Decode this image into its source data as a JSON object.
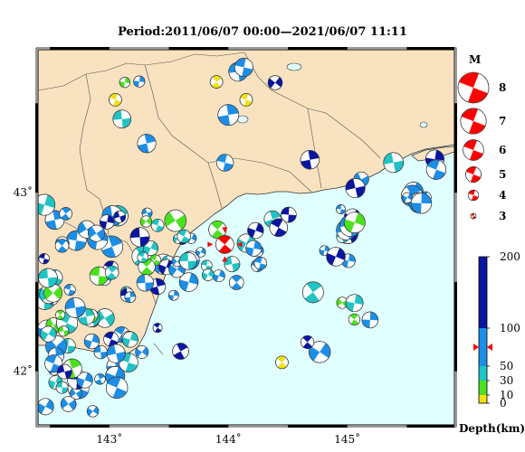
{
  "title": "Period:2011/06/07 00:00—2021/06/07 11:11",
  "map": {
    "lon_range": [
      142.4,
      145.9
    ],
    "lat_range": [
      41.7,
      43.8
    ],
    "lon_ticks": [
      {
        "value": 143,
        "label": "143˚"
      },
      {
        "value": 144,
        "label": "144˚"
      },
      {
        "value": 145,
        "label": "145˚"
      }
    ],
    "lat_ticks": [
      {
        "value": 42,
        "label": "42˚"
      },
      {
        "value": 43,
        "label": "43˚"
      }
    ],
    "land_color": "#f8e2c0",
    "sea_color": "#e0ffff",
    "highlight_event": {
      "lon": 143.97,
      "lat": 42.71,
      "color": "#ff0000"
    }
  },
  "magnitude_legend": {
    "title": "M",
    "items": [
      {
        "label": "8",
        "value": 8
      },
      {
        "label": "7",
        "value": 7
      },
      {
        "label": "6",
        "value": 6
      },
      {
        "label": "5",
        "value": 5
      },
      {
        "label": "4",
        "value": 4
      },
      {
        "label": "3",
        "value": 3
      }
    ]
  },
  "depth_scale": {
    "title": "Depth(km)",
    "range": [
      0,
      200
    ],
    "marker_value": 75,
    "ticks": [
      {
        "label": "200",
        "value": 200
      },
      {
        "label": "100",
        "value": 100
      },
      {
        "label": "50",
        "value": 50
      },
      {
        "label": "30",
        "value": 30
      },
      {
        "label": "10",
        "value": 10
      },
      {
        "label": "0",
        "value": 0
      }
    ],
    "bands": [
      {
        "from": 0,
        "to": 10,
        "color": "#f2e010"
      },
      {
        "from": 10,
        "to": 30,
        "color": "#4ce020"
      },
      {
        "from": 30,
        "to": 50,
        "color": "#20c4c4"
      },
      {
        "from": 50,
        "to": 100,
        "color": "#1c8ee6"
      },
      {
        "from": 100,
        "to": 200,
        "color": "#0a16a0"
      }
    ]
  }
}
